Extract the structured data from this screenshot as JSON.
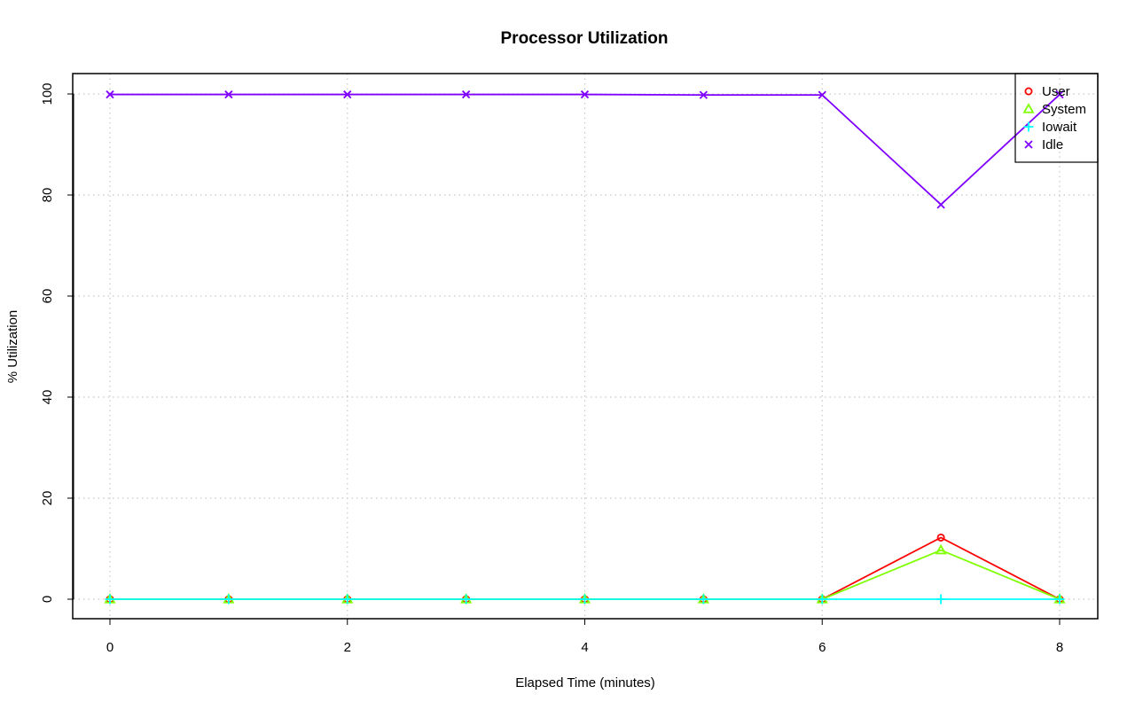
{
  "chart_data": {
    "type": "line",
    "title": "Processor Utilization",
    "xlabel": "Elapsed Time (minutes)",
    "ylabel": "% Utilization",
    "xlim": [
      0,
      8
    ],
    "ylim": [
      0,
      100
    ],
    "x_ticks": [
      0,
      2,
      4,
      6,
      8
    ],
    "y_ticks": [
      0,
      20,
      40,
      60,
      80,
      100
    ],
    "grid": true,
    "legend_position": "top-right",
    "x": [
      0,
      1,
      2,
      3,
      4,
      5,
      6,
      7,
      8
    ],
    "series": [
      {
        "name": "User",
        "color": "#ff0000",
        "marker": "circle",
        "values": [
          0,
          0,
          0,
          0,
          0,
          0,
          0,
          12.2,
          0
        ]
      },
      {
        "name": "System",
        "color": "#80ff00",
        "marker": "triangle",
        "values": [
          0,
          0,
          0,
          0,
          0,
          0,
          0,
          9.7,
          0
        ]
      },
      {
        "name": "Iowait",
        "color": "#00ffff",
        "marker": "plus",
        "values": [
          0,
          0,
          0,
          0,
          0,
          0,
          0,
          0,
          0
        ]
      },
      {
        "name": "Idle",
        "color": "#8000ff",
        "marker": "x",
        "values": [
          99.9,
          99.9,
          99.9,
          99.9,
          99.9,
          99.8,
          99.8,
          78.1,
          99.9
        ]
      }
    ]
  }
}
